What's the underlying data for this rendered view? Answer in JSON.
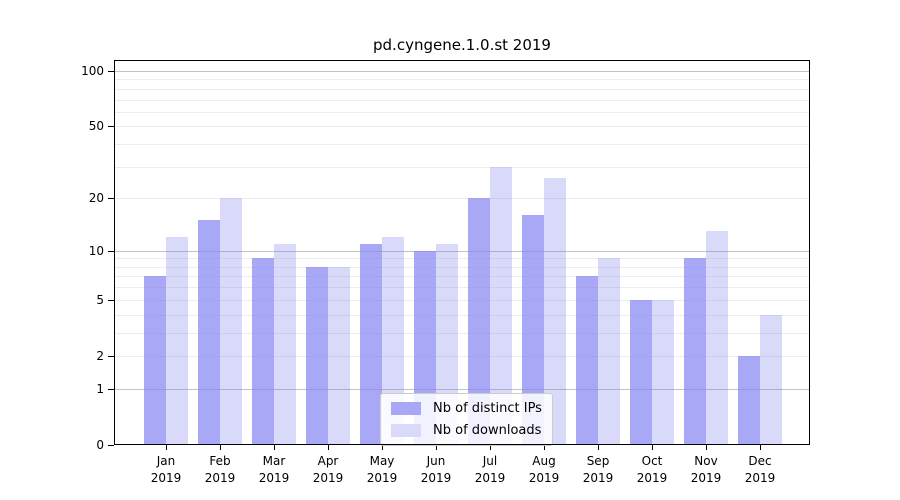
{
  "chart_data": {
    "type": "bar",
    "title": "pd.cyngene.1.0.st 2019",
    "categories": [
      "Jan",
      "Feb",
      "Mar",
      "Apr",
      "May",
      "Jun",
      "Jul",
      "Aug",
      "Sep",
      "Oct",
      "Nov",
      "Dec"
    ],
    "x_year_label": "2019",
    "series": [
      {
        "key": "distinct-ips",
        "name": "Nb of distinct IPs",
        "fill": "rgba(134,134,243,0.72)",
        "swatch": "#a8a8f6",
        "values": [
          7,
          15,
          9,
          8,
          11,
          10,
          20,
          16,
          7,
          5,
          9,
          2
        ]
      },
      {
        "key": "downloads",
        "name": "Nb of downloads",
        "fill": "rgba(128,128,240,0.30)",
        "swatch": "#d9d9fa",
        "values": [
          12,
          20,
          11,
          8,
          12,
          11,
          30,
          26,
          9,
          5,
          13,
          4
        ]
      }
    ],
    "yscale": "log1p",
    "ylim": [
      0,
      100
    ],
    "yticks": [
      0,
      1,
      2,
      5,
      10,
      20,
      50,
      100
    ],
    "grid": {
      "major": [
        1,
        10,
        100
      ],
      "minor": [
        2,
        3,
        4,
        5,
        6,
        7,
        8,
        9,
        20,
        30,
        40,
        50,
        60,
        70,
        80,
        90
      ],
      "major_color": "#c2c2c2",
      "minor_color": "#ececec"
    },
    "legend": {
      "position": "lower-center"
    },
    "colors": {
      "axis": "#000000",
      "text": "#000000",
      "background": "#ffffff"
    }
  }
}
